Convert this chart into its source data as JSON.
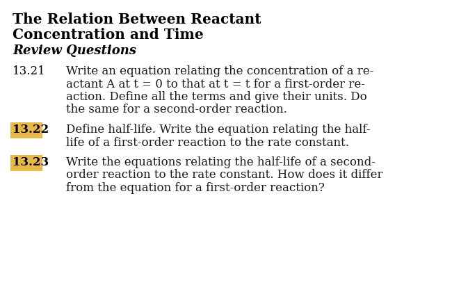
{
  "bg_color": "#ffffff",
  "title_line1": "The Relation Between Reactant",
  "title_line2": "Concentration and Time",
  "subtitle": "Review Questions",
  "questions": [
    {
      "number": "13.21",
      "highlighted": false,
      "highlight_color": null,
      "text_lines": [
        "Write an equation relating the concentration of a re-",
        "actant A at t = 0 to that at t = t for a first-order re-",
        "action. Define all the terms and give their units. Do",
        "the same for a second-order reaction."
      ]
    },
    {
      "number": "13.22",
      "highlighted": true,
      "highlight_color": "#E8B84B",
      "text_lines": [
        "Define half-life. Write the equation relating the half-",
        "life of a first-order reaction to the rate constant."
      ]
    },
    {
      "number": "13.23",
      "highlighted": true,
      "highlight_color": "#E8B84B",
      "text_lines": [
        "Write the equations relating the half-life of a second-",
        "order reaction to the rate constant. How does it differ",
        "from the equation for a first-order reaction?"
      ]
    }
  ],
  "title_fontsize": 14.5,
  "subtitle_fontsize": 13.0,
  "number_fontsize": 12.0,
  "body_fontsize": 12.0,
  "title_color": "#000000",
  "body_color": "#1a1a1a"
}
